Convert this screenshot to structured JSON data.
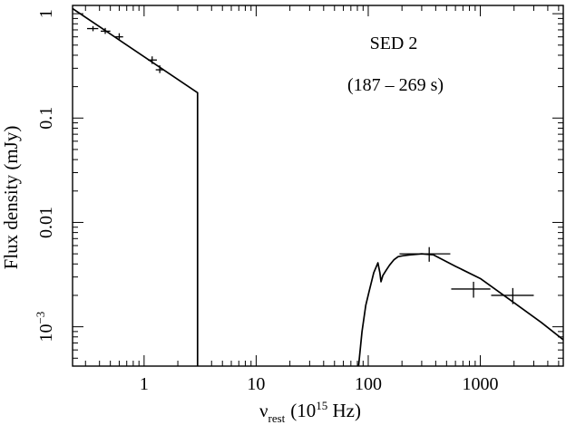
{
  "chart_data": {
    "type": "scatter",
    "title": "SED 2",
    "subtitle": "(187 – 269 s)",
    "xlabel": {
      "symbol": "ν",
      "subscript": "rest",
      "units_open": "(10",
      "units_exp": "15",
      "units_close": " Hz)"
    },
    "ylabel": "Flux density (mJy)",
    "xscale": "log",
    "yscale": "log",
    "xlim": [
      0.23,
      5500
    ],
    "ylim": [
      0.00042,
      1.2
    ],
    "grid": false,
    "x_ticks": [
      {
        "value": 1,
        "label": "1"
      },
      {
        "value": 10,
        "label": "10"
      },
      {
        "value": 100,
        "label": "100"
      },
      {
        "value": 1000,
        "label": "1000"
      }
    ],
    "y_ticks": [
      {
        "value": 1,
        "label": "1"
      },
      {
        "value": 0.1,
        "label": "0.1"
      },
      {
        "value": 0.01,
        "label": "0.01"
      },
      {
        "value": 0.001,
        "label": "10",
        "exponent": "−3"
      }
    ],
    "series": [
      {
        "style": "crosses",
        "points": [
          {
            "x": 0.35,
            "y": 0.72,
            "xerr": [
              0.31,
              0.39
            ],
            "yerr": [
              0.68,
              0.76
            ]
          },
          {
            "x": 0.45,
            "y": 0.68,
            "xerr": [
              0.41,
              0.5
            ],
            "yerr": [
              0.64,
              0.73
            ]
          },
          {
            "x": 0.6,
            "y": 0.6,
            "xerr": [
              0.55,
              0.65
            ],
            "yerr": [
              0.56,
              0.65
            ]
          },
          {
            "x": 1.18,
            "y": 0.36,
            "xerr": [
              1.08,
              1.3
            ],
            "yerr": [
              0.33,
              0.39
            ]
          },
          {
            "x": 1.38,
            "y": 0.29,
            "xerr": [
              1.27,
              1.5
            ],
            "yerr": [
              0.27,
              0.32
            ]
          },
          {
            "x": 350,
            "y": 0.005,
            "xerr": [
              190,
              540
            ],
            "yerr": [
              0.0042,
              0.0058
            ]
          },
          {
            "x": 870,
            "y": 0.0023,
            "xerr": [
              550,
              1230
            ],
            "yerr": [
              0.0019,
              0.0027
            ]
          },
          {
            "x": 1950,
            "y": 0.002,
            "xerr": [
              1250,
              3000
            ],
            "yerr": [
              0.00165,
              0.00235
            ]
          }
        ]
      },
      {
        "style": "line",
        "points": [
          {
            "x": 0.23,
            "y": 1.12
          },
          {
            "x": 3.0,
            "y": 0.175
          },
          {
            "x": 3.0,
            "y": 0.00042
          }
        ]
      },
      {
        "style": "line",
        "points": [
          {
            "x": 82,
            "y": 0.00042
          },
          {
            "x": 88,
            "y": 0.0009
          },
          {
            "x": 95,
            "y": 0.0016
          },
          {
            "x": 102,
            "y": 0.0022
          },
          {
            "x": 112,
            "y": 0.0033
          },
          {
            "x": 122,
            "y": 0.0041
          },
          {
            "x": 127,
            "y": 0.0033
          },
          {
            "x": 130,
            "y": 0.0027
          },
          {
            "x": 135,
            "y": 0.0031
          },
          {
            "x": 145,
            "y": 0.0035
          },
          {
            "x": 155,
            "y": 0.0039
          },
          {
            "x": 170,
            "y": 0.0044
          },
          {
            "x": 185,
            "y": 0.0047
          },
          {
            "x": 205,
            "y": 0.0048
          },
          {
            "x": 240,
            "y": 0.0049
          },
          {
            "x": 300,
            "y": 0.005
          },
          {
            "x": 380,
            "y": 0.0049
          },
          {
            "x": 600,
            "y": 0.0038
          },
          {
            "x": 1000,
            "y": 0.0029
          },
          {
            "x": 2000,
            "y": 0.0017
          },
          {
            "x": 3500,
            "y": 0.0011
          },
          {
            "x": 5500,
            "y": 0.00075
          }
        ]
      }
    ]
  }
}
